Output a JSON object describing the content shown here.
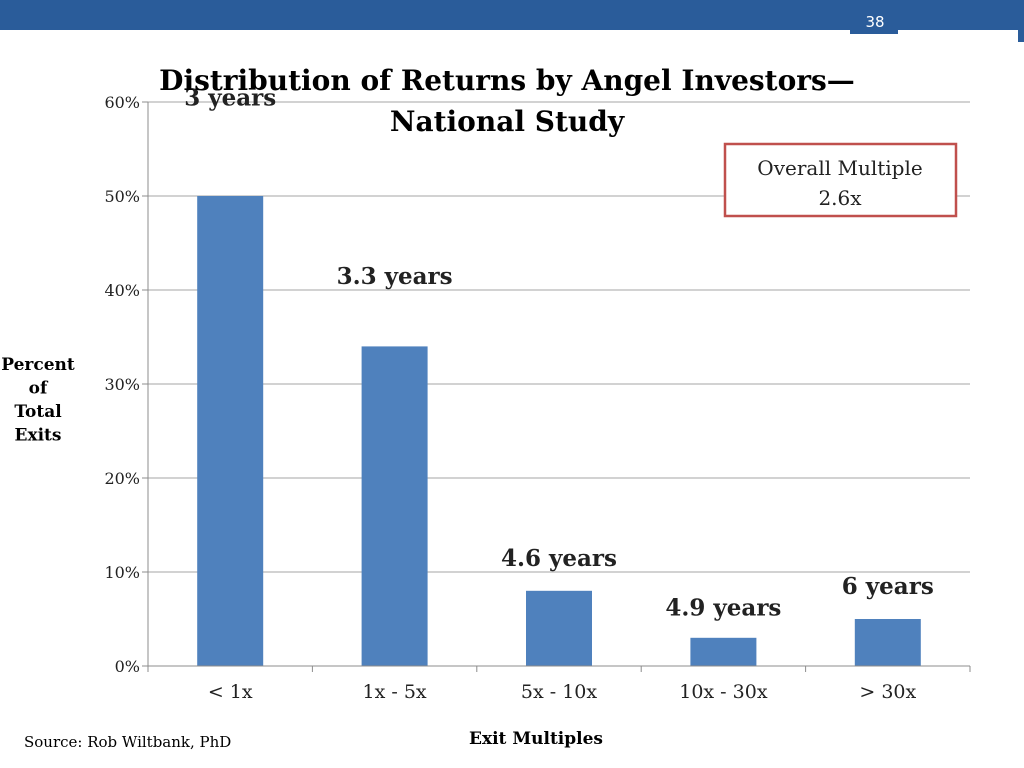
{
  "slide": {
    "number": "38",
    "source": "Source: Rob Wiltbank, PhD"
  },
  "callout": {
    "line1": "Overall Multiple",
    "line2": "2.6x",
    "border_color": "#c0504d"
  },
  "colors": {
    "bar": "#4f81bd",
    "header": "#2a5c9a",
    "gridline": "#a6a6a6"
  },
  "chart_data": {
    "type": "bar",
    "title_lines": [
      "Distribution of Returns by Angel Investors—",
      "National Study"
    ],
    "categories": [
      "< 1x",
      "1x - 5x",
      "5x - 10x",
      "10x - 30x",
      "> 30x"
    ],
    "values": [
      50,
      34,
      8,
      3,
      5
    ],
    "value_unit": "%",
    "bar_annotations": [
      "3 years",
      "3.3 years",
      "4.6 years",
      "4.9 years",
      "6 years"
    ],
    "ylabel_lines": [
      "Percent",
      "of",
      "Total",
      "Exits"
    ],
    "xlabel": "Exit Multiples",
    "ylim": [
      0,
      60
    ],
    "yticks": [
      0,
      10,
      20,
      30,
      40,
      50,
      60
    ],
    "ytick_labels": [
      "0%",
      "10%",
      "20%",
      "30%",
      "40%",
      "50%",
      "60%"
    ],
    "grid": true,
    "legend": "none"
  }
}
